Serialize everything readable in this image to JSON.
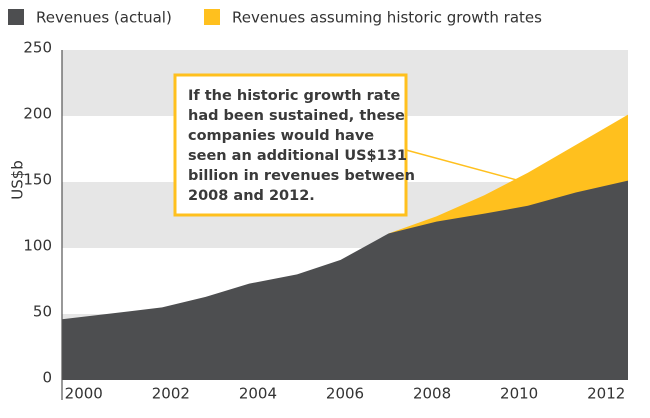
{
  "chart_data": {
    "type": "area",
    "y_label": "US$b",
    "x": [
      1999.5,
      2001.8,
      2002.8,
      2003.8,
      2004.9,
      2005.9,
      2007.0,
      2008.1,
      2009.2,
      2010.2,
      2011.3,
      2012.5
    ],
    "series": [
      {
        "name": "Revenues (actual)",
        "color": "#4d4e50",
        "values": [
          46,
          55,
          63,
          73,
          80,
          91,
          111,
          120,
          126,
          132,
          142,
          151
        ]
      },
      {
        "name": "Revenues assuming historic growth rates",
        "color": "#ffc01e",
        "values": [
          null,
          null,
          null,
          null,
          null,
          null,
          111,
          124,
          140,
          157,
          178,
          201
        ]
      }
    ],
    "xlim": [
      1999.5,
      2012.5
    ],
    "xticks": [
      2000,
      2002,
      2004,
      2006,
      2008,
      2010,
      2012
    ],
    "ylim": [
      0,
      250
    ],
    "yticks": [
      0,
      50,
      100,
      150,
      200,
      250
    ],
    "grid": "bands",
    "annotation_lines": [
      "If the historic growth rate",
      "had been sustained, these",
      "companies would have",
      "seen an additional US$131",
      "billion in revenues between",
      "2008 and 2012."
    ]
  }
}
